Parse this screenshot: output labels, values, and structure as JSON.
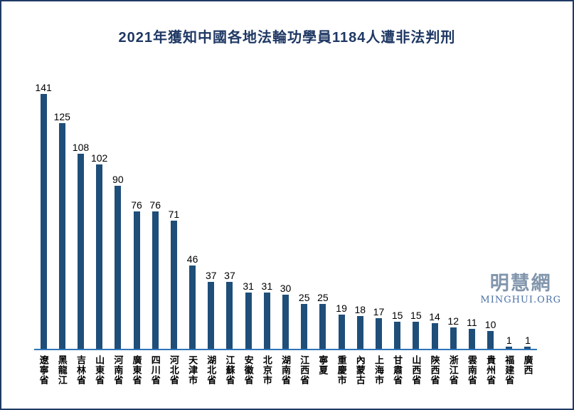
{
  "title": "2021年獲知中國各地法輪功學員1184人遭非法判刑",
  "watermark": {
    "name": "明慧網",
    "site": "MINGHUI.ORG"
  },
  "colors": {
    "title": "#1F3864",
    "bar": "#1F4E79",
    "axis_line": "#2E75B6",
    "value_label": "#000000",
    "category_label": "#000000",
    "frame_border": "#1F3A63",
    "watermark_cjk": "#8195AC",
    "watermark_latin": "#4A70A6",
    "background": "#FFFFFF"
  },
  "chart_data": {
    "type": "bar",
    "title": "2021年獲知中國各地法輪功學員1184人遭非法判刑",
    "categories": [
      "遼寧省",
      "黑龍江",
      "吉林省",
      "山東省",
      "河南省",
      "廣東省",
      "四川省",
      "河北省",
      "天津市",
      "湖北省",
      "江蘇省",
      "安徽省",
      "北京市",
      "湖南省",
      "江西省",
      "寧夏",
      "重慶市",
      "內蒙古",
      "上海市",
      "甘肅省",
      "山西省",
      "陝西省",
      "浙江省",
      "雲南省",
      "貴州省",
      "福建省",
      "廣西"
    ],
    "values": [
      141,
      125,
      108,
      102,
      90,
      76,
      76,
      71,
      46,
      37,
      37,
      31,
      31,
      30,
      25,
      25,
      19,
      18,
      17,
      15,
      15,
      14,
      12,
      11,
      10,
      1,
      1
    ],
    "total": 1184,
    "xlabel": "",
    "ylabel": "",
    "ylim": [
      0,
      150
    ],
    "grid": false,
    "legend": false,
    "orientation": "vertical",
    "data_labels": "above-bars",
    "category_label_orientation": "vertical-upright"
  }
}
